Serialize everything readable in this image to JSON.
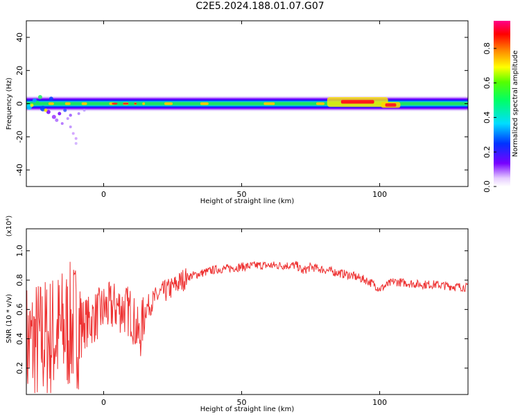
{
  "title": "C2E5.2024.188.01.07.G07",
  "chart_data": [
    {
      "type": "heatmap",
      "xlabel": "Height of straight line (km)",
      "ylabel": "Frequency (Hz)",
      "xlim": [
        -28,
        132
      ],
      "ylim": [
        -50,
        50
      ],
      "xticks": [
        0,
        50,
        100
      ],
      "yticks": [
        -40,
        -20,
        0,
        20,
        40
      ],
      "colorbar": {
        "label": "Normalized spectral amplitude",
        "range": [
          0,
          0.96
        ],
        "ticks": [
          0.0,
          0.2,
          0.4,
          0.6,
          0.8
        ]
      },
      "features": [
        {
          "x_range": [
            -28,
            132
          ],
          "center_freq": 0,
          "half_width": 5,
          "level": "main band"
        },
        {
          "x_range": [
            86,
            98
          ],
          "center_freq": 1,
          "amplitude": 0.9
        },
        {
          "x_range": [
            102,
            106
          ],
          "center_freq": -1,
          "amplitude": 0.95
        },
        {
          "x_range": [
            -28,
            -10
          ],
          "center_freq": 0,
          "spread": [
            -24,
            6
          ],
          "amplitude": "scattered"
        }
      ]
    },
    {
      "type": "line",
      "xlabel": "Height of straight line (km)",
      "ylabel": "SNR (10 * v/v)",
      "yscale_label": "(x10⁴)",
      "xlim": [
        -28,
        132
      ],
      "ylim": [
        0.02,
        1.15
      ],
      "xticks": [
        0,
        50,
        100
      ],
      "yticks": [
        0.2,
        0.4,
        0.6,
        0.8,
        1.0
      ],
      "series": [
        {
          "color": "#ee3333",
          "x": [
            -28,
            -20,
            -15,
            -10,
            -5,
            0,
            5,
            10,
            13,
            15,
            20,
            25,
            30,
            40,
            50,
            55,
            60,
            65,
            70,
            72,
            75,
            80,
            85,
            90,
            95,
            98,
            100,
            102,
            105,
            110,
            115,
            120,
            125,
            132
          ],
          "y": [
            0.35,
            0.4,
            0.45,
            0.5,
            0.52,
            0.6,
            0.62,
            0.58,
            0.4,
            0.6,
            0.7,
            0.75,
            0.82,
            0.87,
            0.89,
            0.9,
            0.9,
            0.9,
            0.9,
            0.86,
            0.89,
            0.87,
            0.85,
            0.83,
            0.8,
            0.77,
            0.74,
            0.76,
            0.79,
            0.78,
            0.77,
            0.77,
            0.76,
            0.75
          ]
        }
      ]
    }
  ]
}
